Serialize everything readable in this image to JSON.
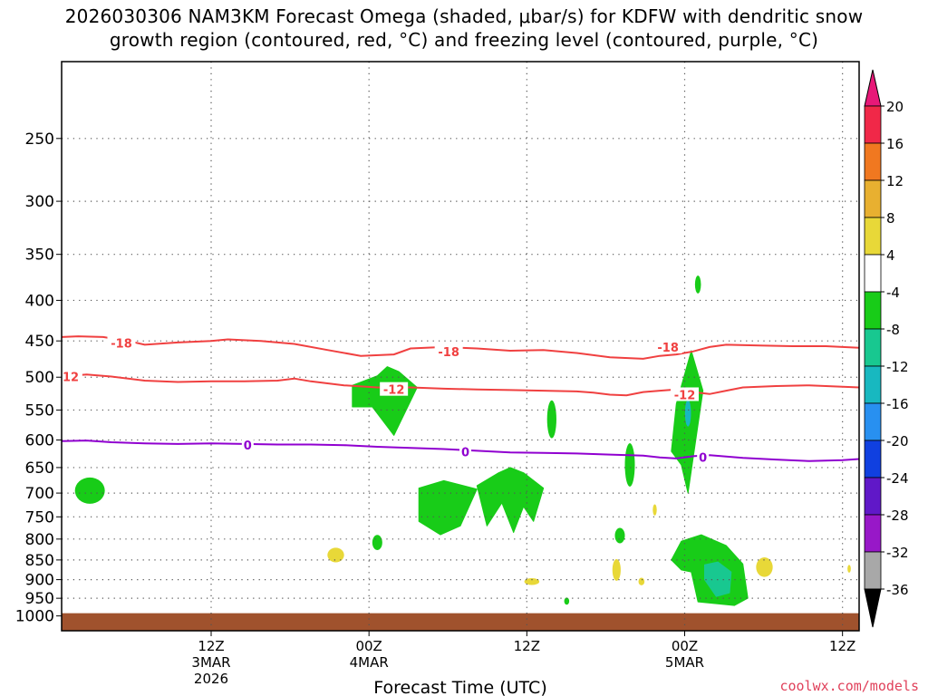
{
  "title_line1": "2026030306 NAM3KM Forecast Omega (shaded, μbar/s) for KDFW with dendritic snow",
  "title_line2": "growth region (contoured, red, °C) and freezing level (contoured, purple, °C)",
  "credit": "coolwx.com/models",
  "chart_data": {
    "type": "heatmap",
    "xlabel": "Forecast Time (UTC)",
    "ylabel": "",
    "y_scale": "log",
    "ylim": [
      1000,
      200
    ],
    "grid": true,
    "pressure_levels": [
      250,
      300,
      350,
      400,
      450,
      500,
      550,
      600,
      650,
      700,
      750,
      800,
      850,
      900,
      950,
      1000
    ],
    "xlim": [
      3,
      51
    ],
    "x_ticks": [
      {
        "h": 12,
        "label": "12Z",
        "sub1": "3MAR",
        "sub2": "2026"
      },
      {
        "h": 21.5,
        "label": "00Z",
        "sub1": "4MAR",
        "sub2": ""
      },
      {
        "h": 31,
        "label": "12Z",
        "sub1": "",
        "sub2": ""
      },
      {
        "h": 40.5,
        "label": "00Z",
        "sub1": "5MAR",
        "sub2": ""
      },
      {
        "h": 50,
        "label": "12Z",
        "sub1": "",
        "sub2": ""
      }
    ],
    "colorbar": {
      "levels": [
        20,
        16,
        12,
        8,
        4,
        -4,
        -8,
        -12,
        -16,
        -20,
        -24,
        -28,
        -32,
        -36
      ],
      "colors": [
        "#f02848",
        "#f07820",
        "#e8b030",
        "#e8d838",
        "#ffffff",
        "#18cc18",
        "#18c890",
        "#18b8c0",
        "#2890f0",
        "#1040e0",
        "#6018c8",
        "#9818c8",
        "#a8a8a8"
      ],
      "top_arrow": "#e81878",
      "bottom_arrow": "#000000"
    },
    "ground_color": "#a0522d",
    "contours": [
      {
        "value": -18,
        "color": "#f04040",
        "label": "-18",
        "points": [
          [
            3,
            445
          ],
          [
            4,
            444
          ],
          [
            5.5,
            445
          ],
          [
            7,
            450
          ],
          [
            8,
            455
          ],
          [
            10,
            452
          ],
          [
            12,
            450
          ],
          [
            13,
            448
          ],
          [
            15,
            450
          ],
          [
            17,
            454
          ],
          [
            19,
            462
          ],
          [
            21,
            470
          ],
          [
            23,
            468
          ],
          [
            24,
            460
          ],
          [
            26,
            458
          ],
          [
            28,
            460
          ],
          [
            30,
            463
          ],
          [
            32,
            462
          ],
          [
            34,
            466
          ],
          [
            36,
            472
          ],
          [
            38,
            474
          ],
          [
            39,
            470
          ],
          [
            40,
            468
          ],
          [
            41,
            464
          ],
          [
            42,
            458
          ],
          [
            43,
            455
          ],
          [
            45,
            456
          ],
          [
            47,
            457
          ],
          [
            49,
            457
          ],
          [
            51,
            459
          ]
        ],
        "label_at": [
          [
            6.6,
            453
          ],
          [
            26.3,
            464
          ],
          [
            39.5,
            458
          ]
        ]
      },
      {
        "value": -12,
        "color": "#f04040",
        "label": "-12",
        "points": [
          [
            3,
            499
          ],
          [
            4.5,
            496
          ],
          [
            6,
            499
          ],
          [
            8,
            505
          ],
          [
            10,
            507
          ],
          [
            12,
            506
          ],
          [
            14,
            506
          ],
          [
            16,
            505
          ],
          [
            17,
            502
          ],
          [
            18,
            506
          ],
          [
            20,
            512
          ],
          [
            22,
            515
          ],
          [
            24,
            515
          ],
          [
            26,
            517
          ],
          [
            28,
            518
          ],
          [
            30,
            519
          ],
          [
            32,
            520
          ],
          [
            34,
            521
          ],
          [
            35,
            523
          ],
          [
            36,
            526
          ],
          [
            37,
            527
          ],
          [
            38,
            522
          ],
          [
            39,
            520
          ],
          [
            40,
            518
          ],
          [
            41,
            522
          ],
          [
            42,
            525
          ],
          [
            43,
            520
          ],
          [
            44,
            515
          ],
          [
            46,
            513
          ],
          [
            48,
            512
          ],
          [
            50,
            514
          ],
          [
            51,
            515
          ]
        ],
        "label_at": [
          [
            3.4,
            499
          ],
          [
            23,
            518
          ],
          [
            40.5,
            526
          ]
        ]
      },
      {
        "value": 0,
        "color": "#9000d0",
        "label": "0",
        "points": [
          [
            3,
            602
          ],
          [
            4.5,
            601
          ],
          [
            6,
            604
          ],
          [
            8,
            606
          ],
          [
            10,
            607
          ],
          [
            12,
            606
          ],
          [
            14,
            607
          ],
          [
            16,
            608
          ],
          [
            18,
            608
          ],
          [
            20,
            609
          ],
          [
            22,
            612
          ],
          [
            24,
            614
          ],
          [
            26,
            616
          ],
          [
            28,
            619
          ],
          [
            30,
            622
          ],
          [
            32,
            623
          ],
          [
            34,
            624
          ],
          [
            36,
            626
          ],
          [
            38,
            628
          ],
          [
            39,
            631
          ],
          [
            40,
            633
          ],
          [
            41,
            629
          ],
          [
            42,
            627
          ],
          [
            44,
            632
          ],
          [
            46,
            635
          ],
          [
            48,
            638
          ],
          [
            50,
            636
          ],
          [
            51,
            634
          ]
        ],
        "label_at": [
          [
            14.2,
            609
          ],
          [
            27.3,
            621
          ],
          [
            41.6,
            631
          ]
        ]
      }
    ],
    "features": [
      {
        "type": "ellipse",
        "value": -6,
        "color": "#18cc18",
        "h": 4.7,
        "p": 695,
        "rh": 0.9,
        "rp": 27
      },
      {
        "type": "poly",
        "value": -6,
        "color": "#18cc18",
        "points": [
          [
            20.5,
            512
          ],
          [
            20.5,
            545
          ],
          [
            21.7,
            545
          ],
          [
            23,
            592
          ],
          [
            24.4,
            515
          ],
          [
            23.3,
            492
          ],
          [
            22.6,
            485
          ],
          [
            22,
            498
          ]
        ]
      },
      {
        "type": "poly",
        "value": -6,
        "color": "#18cc18",
        "points": [
          [
            24.5,
            690
          ],
          [
            26,
            675
          ],
          [
            28,
            692
          ],
          [
            27,
            770
          ],
          [
            25.8,
            790
          ],
          [
            24.5,
            760
          ]
        ]
      },
      {
        "type": "poly",
        "value": -6,
        "color": "#18cc18",
        "points": [
          [
            28,
            685
          ],
          [
            29.3,
            660
          ],
          [
            30,
            650
          ],
          [
            30.8,
            660
          ],
          [
            32,
            690
          ],
          [
            31.4,
            760
          ],
          [
            30.8,
            728
          ],
          [
            30.2,
            785
          ],
          [
            29.5,
            720
          ],
          [
            28.6,
            770
          ]
        ]
      },
      {
        "type": "ellipse",
        "value": -6,
        "color": "#18cc18",
        "h": 22,
        "p": 808,
        "rh": 0.3,
        "rp": 18
      },
      {
        "type": "ellipse",
        "value": -6,
        "color": "#18cc18",
        "h": 32.5,
        "p": 565,
        "rh": 0.28,
        "rp": 32
      },
      {
        "type": "ellipse",
        "value": -6,
        "color": "#18cc18",
        "h": 37.2,
        "p": 645,
        "rh": 0.3,
        "rp": 42
      },
      {
        "type": "ellipse",
        "value": -6,
        "color": "#18cc18",
        "h": 36.6,
        "p": 792,
        "rh": 0.3,
        "rp": 18
      },
      {
        "type": "ellipse",
        "value": -6,
        "color": "#18cc18",
        "h": 41.3,
        "p": 382,
        "rh": 0.18,
        "rp": 10
      },
      {
        "type": "poly",
        "value": -6,
        "color": "#18cc18",
        "points": [
          [
            39.7,
            620
          ],
          [
            40,
            540
          ],
          [
            40.9,
            463
          ],
          [
            41.6,
            520
          ],
          [
            40.7,
            700
          ],
          [
            40.3,
            645
          ]
        ]
      },
      {
        "type": "poly",
        "value": -6,
        "color": "#18cc18",
        "points": [
          [
            39.7,
            850
          ],
          [
            40.3,
            805
          ],
          [
            41.5,
            790
          ],
          [
            43,
            815
          ],
          [
            44,
            860
          ],
          [
            44.3,
            950
          ],
          [
            43.5,
            970
          ],
          [
            41.3,
            960
          ],
          [
            40.9,
            880
          ],
          [
            40.3,
            875
          ]
        ]
      },
      {
        "type": "ellipse",
        "value": -6,
        "color": "#18cc18",
        "h": 33.4,
        "p": 958,
        "rh": 0.15,
        "rp": 10
      },
      {
        "type": "poly",
        "value": -10,
        "color": "#18c890",
        "points": [
          [
            41.7,
            862
          ],
          [
            42.5,
            855
          ],
          [
            43.3,
            880
          ],
          [
            43.2,
            935
          ],
          [
            42.4,
            945
          ],
          [
            41.7,
            900
          ]
        ]
      },
      {
        "type": "ellipse",
        "value": -14,
        "color": "#18b8c0",
        "h": 40.7,
        "p": 555,
        "rh": 0.18,
        "rp": 22
      },
      {
        "type": "ellipse",
        "value": 6,
        "color": "#e8d838",
        "h": 19.5,
        "p": 838,
        "rh": 0.5,
        "rp": 18
      },
      {
        "type": "ellipse",
        "value": 6,
        "color": "#e8d838",
        "h": 38.7,
        "p": 735,
        "rh": 0.12,
        "rp": 12
      },
      {
        "type": "ellipse",
        "value": 6,
        "color": "#e8d838",
        "h": 36.4,
        "p": 875,
        "rh": 0.25,
        "rp": 28
      },
      {
        "type": "ellipse",
        "value": 6,
        "color": "#e8d838",
        "h": 37.9,
        "p": 905,
        "rh": 0.18,
        "rp": 10
      },
      {
        "type": "ellipse",
        "value": 6,
        "color": "#e8d838",
        "h": 31.3,
        "p": 905,
        "rh": 0.45,
        "rp": 9
      },
      {
        "type": "ellipse",
        "value": 6,
        "color": "#e8d838",
        "h": 45.3,
        "p": 868,
        "rh": 0.5,
        "rp": 25
      },
      {
        "type": "ellipse",
        "value": 6,
        "color": "#e8d838",
        "h": 50.4,
        "p": 872,
        "rh": 0.1,
        "rp": 10
      }
    ]
  }
}
